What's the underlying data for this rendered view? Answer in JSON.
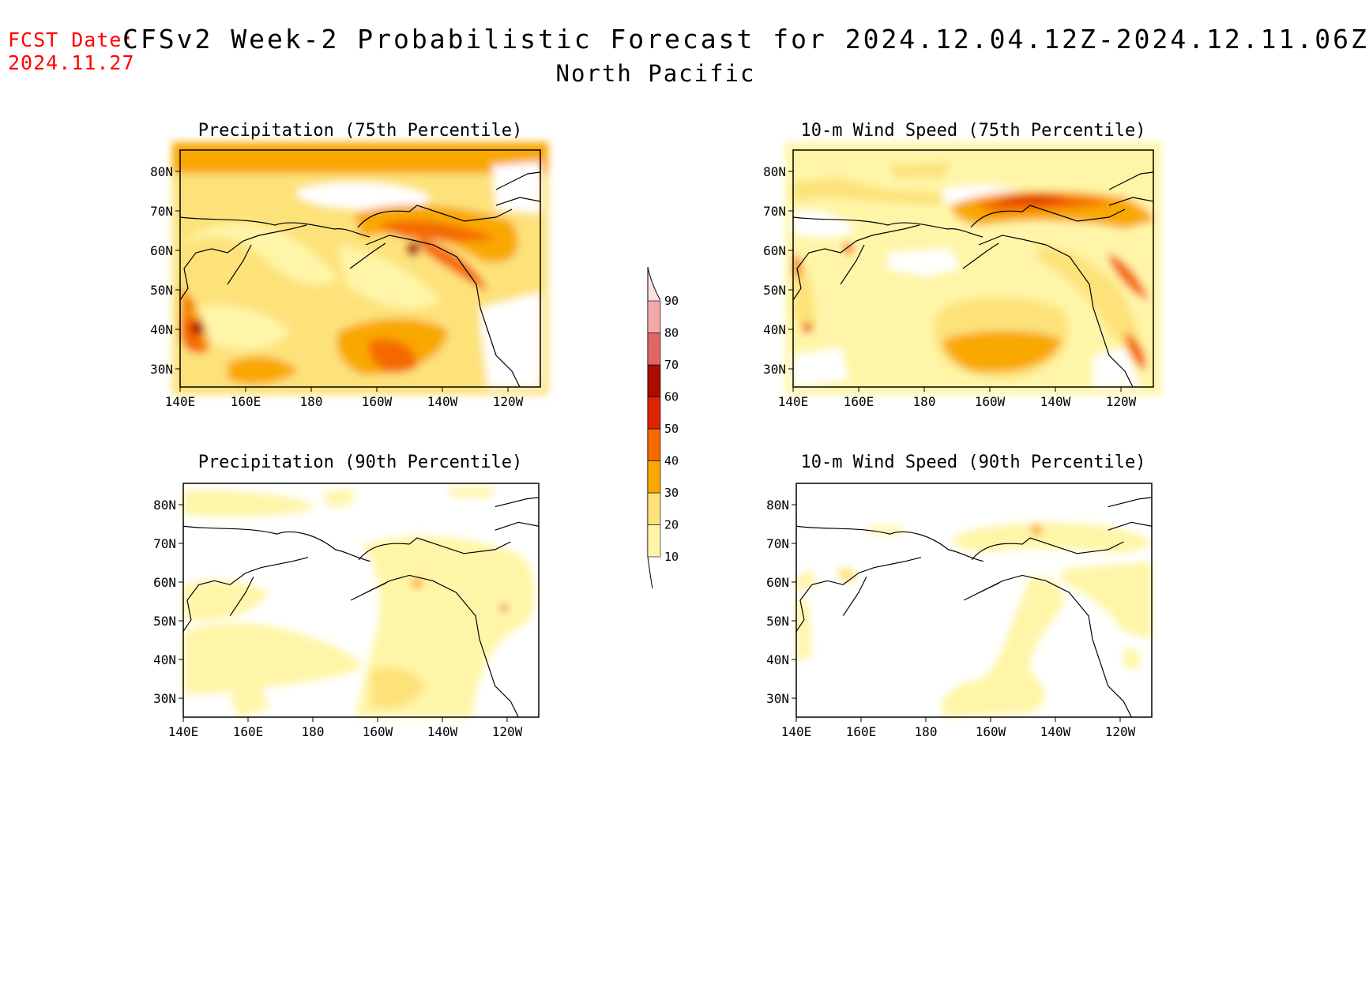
{
  "header": {
    "fcst_label": "FCST Date:",
    "fcst_date": "2024.11.27",
    "title": "CFSv2 Week-2 Probabilistic Forecast for 2024.12.04.12Z-2024.12.11.06Z",
    "subtitle": "North Pacific"
  },
  "axes": {
    "lon_labels": [
      "140E",
      "160E",
      "180",
      "160W",
      "140W",
      "120W"
    ],
    "lat_labels": [
      "80N",
      "70N",
      "60N",
      "50N",
      "40N",
      "30N"
    ]
  },
  "panels": [
    {
      "id": "precip-75",
      "title": "Precipitation (75th Percentile)"
    },
    {
      "id": "wind-75",
      "title": "10-m Wind Speed (75th Percentile)"
    },
    {
      "id": "precip-90",
      "title": "Precipitation (90th Percentile)"
    },
    {
      "id": "wind-90",
      "title": "10-m Wind Speed (90th Percentile)"
    }
  ],
  "colorbar": {
    "levels": [
      "10",
      "20",
      "30",
      "40",
      "50",
      "60",
      "70",
      "80",
      "90"
    ],
    "colors": [
      "#fff5a8",
      "#fde27a",
      "#f9a800",
      "#f56a00",
      "#de2400",
      "#a80d00",
      "#e06666",
      "#f2a8a8",
      "#fde0e6"
    ]
  }
}
